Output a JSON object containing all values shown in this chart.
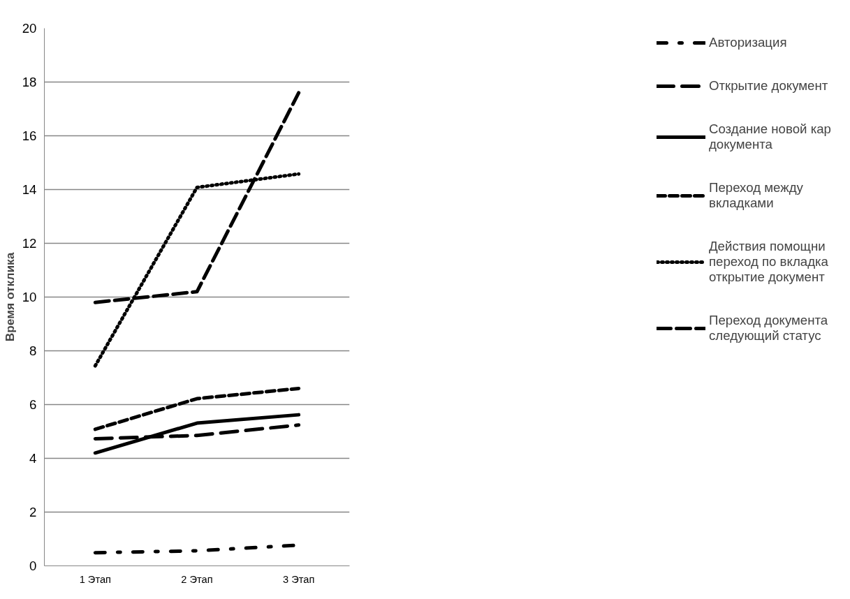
{
  "chart_data": {
    "type": "line",
    "ylabel": "Время отклика",
    "categories": [
      "1 Этап",
      "2 Этап",
      "3 Этап"
    ],
    "ylim": [
      0,
      20
    ],
    "yticks": [
      0,
      2,
      4,
      6,
      8,
      10,
      12,
      14,
      16,
      18,
      20
    ],
    "grid": "y",
    "legend": "right",
    "marker": "none",
    "series": [
      {
        "name": "Авторизация",
        "color": "#000000",
        "line_style": "dashdotdot",
        "values": [
          0.49,
          0.56,
          0.77
        ]
      },
      {
        "name": "Открытие документ",
        "color": "#000000",
        "line_style": "longdash",
        "values": [
          4.73,
          4.85,
          5.24
        ]
      },
      {
        "name": "Создание новой кар\nдокумента",
        "color": "#000000",
        "line_style": "solid",
        "values": [
          4.2,
          5.31,
          5.62
        ]
      },
      {
        "name": "Переход между\nвкладками",
        "color": "#000000",
        "line_style": "dashed",
        "values": [
          5.08,
          6.22,
          6.6
        ]
      },
      {
        "name": "Действия помощни\nпереход по вкладка\nоткрытие документ",
        "color": "#000000",
        "line_style": "dotted",
        "values": [
          7.44,
          14.08,
          14.58
        ]
      },
      {
        "name": "Переход документа\nследующий статус",
        "color": "#000000",
        "line_style": "longdashdot",
        "values": [
          9.8,
          10.2,
          17.6
        ]
      }
    ]
  }
}
